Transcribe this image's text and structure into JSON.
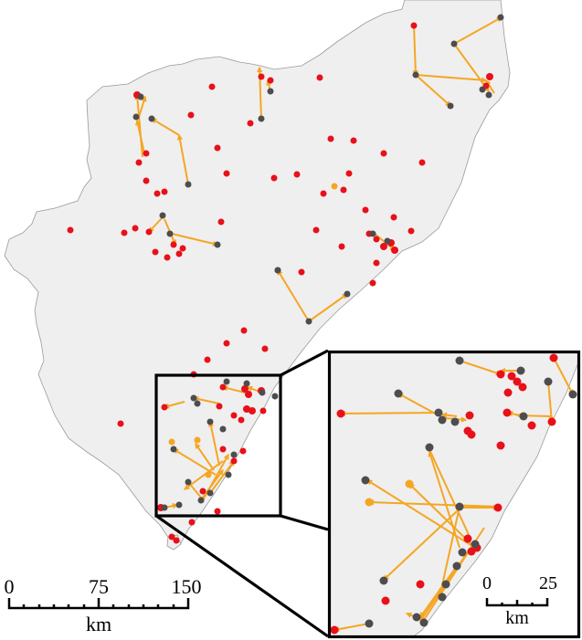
{
  "colors": {
    "land": "#efefef",
    "land_outline": "#9a9a9a",
    "arrow": "#f5a623",
    "red_point": "#e8101a",
    "grey_point": "#4d4d4d",
    "orange_point": "#f5a623",
    "frame": "#000000"
  },
  "scale_main": {
    "ticks": [
      "0",
      "75",
      "150"
    ],
    "unit": "km"
  },
  "scale_inset": {
    "ticks": [
      "0",
      "25"
    ],
    "unit": "km"
  }
}
